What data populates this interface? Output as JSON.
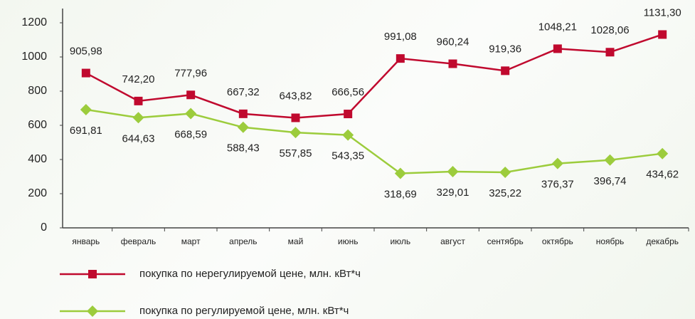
{
  "chart_data": {
    "type": "line",
    "categories": [
      "январь",
      "февраль",
      "март",
      "апрель",
      "май",
      "июнь",
      "июль",
      "август",
      "сентябрь",
      "октябрь",
      "ноябрь",
      "декабрь"
    ],
    "series": [
      {
        "name": "покупка по нерегулируемой цене, млн. кВт*ч",
        "color": "#c0092e",
        "marker": "square",
        "values": [
          905.98,
          742.2,
          777.96,
          667.32,
          643.82,
          666.56,
          991.08,
          960.24,
          919.36,
          1048.21,
          1028.06,
          1131.3
        ],
        "value_labels": [
          "905,98",
          "742,20",
          "777,96",
          "667,32",
          "643,82",
          "666,56",
          "991,08",
          "960,24",
          "919,36",
          "1048,21",
          "1028,06",
          "1131,30"
        ]
      },
      {
        "name": "покупка по регулируемой цене, млн. кВт*ч",
        "color": "#9ccc3c",
        "marker": "diamond",
        "values": [
          691.81,
          644.63,
          668.59,
          588.43,
          557.85,
          543.35,
          318.69,
          329.01,
          325.22,
          376.37,
          396.74,
          434.62
        ],
        "value_labels": [
          "691,81",
          "644,63",
          "668,59",
          "588,43",
          "557,85",
          "543,35",
          "318,69",
          "329,01",
          "325,22",
          "376,37",
          "396,74",
          "434,62"
        ]
      }
    ],
    "ylim": [
      0,
      1200
    ],
    "yticks": [
      0,
      200,
      400,
      600,
      800,
      1000,
      1200
    ],
    "grid": false
  }
}
